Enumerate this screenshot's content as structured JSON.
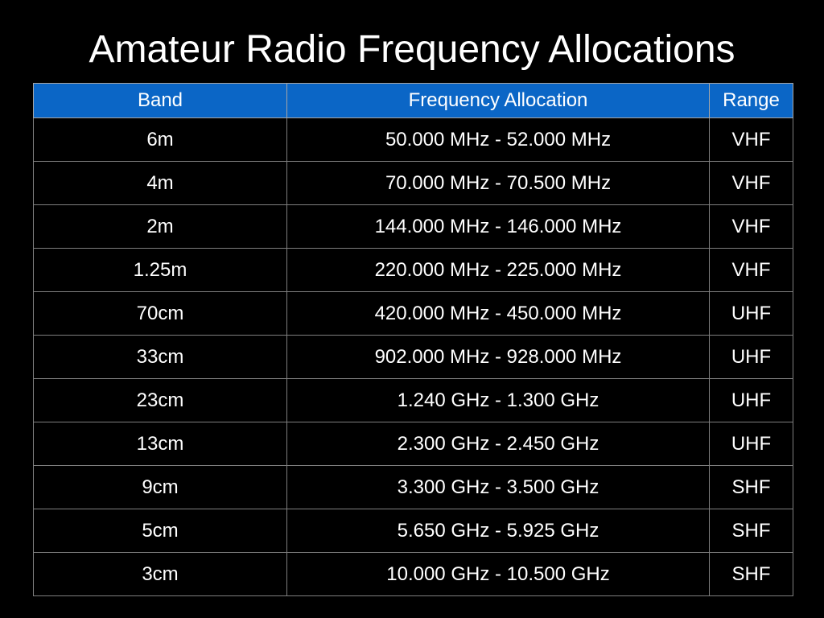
{
  "title": "Amateur Radio Frequency Allocations",
  "colors": {
    "background": "#000000",
    "header_fill": "#0b66c6",
    "grid_line": "#7f7f7f",
    "text": "#ffffff"
  },
  "table": {
    "headers": [
      "Band",
      "Frequency Allocation",
      "Range"
    ],
    "rows": [
      [
        "6m",
        "50.000 MHz - 52.000 MHz",
        "VHF"
      ],
      [
        "4m",
        "70.000 MHz - 70.500 MHz",
        "VHF"
      ],
      [
        "2m",
        "144.000 MHz - 146.000 MHz",
        "VHF"
      ],
      [
        "1.25m",
        "220.000 MHz - 225.000 MHz",
        "VHF"
      ],
      [
        "70cm",
        "420.000 MHz - 450.000 MHz",
        "UHF"
      ],
      [
        "33cm",
        "902.000 MHz - 928.000 MHz",
        "UHF"
      ],
      [
        "23cm",
        "1.240 GHz - 1.300 GHz",
        "UHF"
      ],
      [
        "13cm",
        "2.300 GHz - 2.450 GHz",
        "UHF"
      ],
      [
        "9cm",
        "3.300 GHz - 3.500 GHz",
        "SHF"
      ],
      [
        "5cm",
        "5.650 GHz - 5.925 GHz",
        "SHF"
      ],
      [
        "3cm",
        "10.000 GHz - 10.500 GHz",
        "SHF"
      ]
    ]
  }
}
